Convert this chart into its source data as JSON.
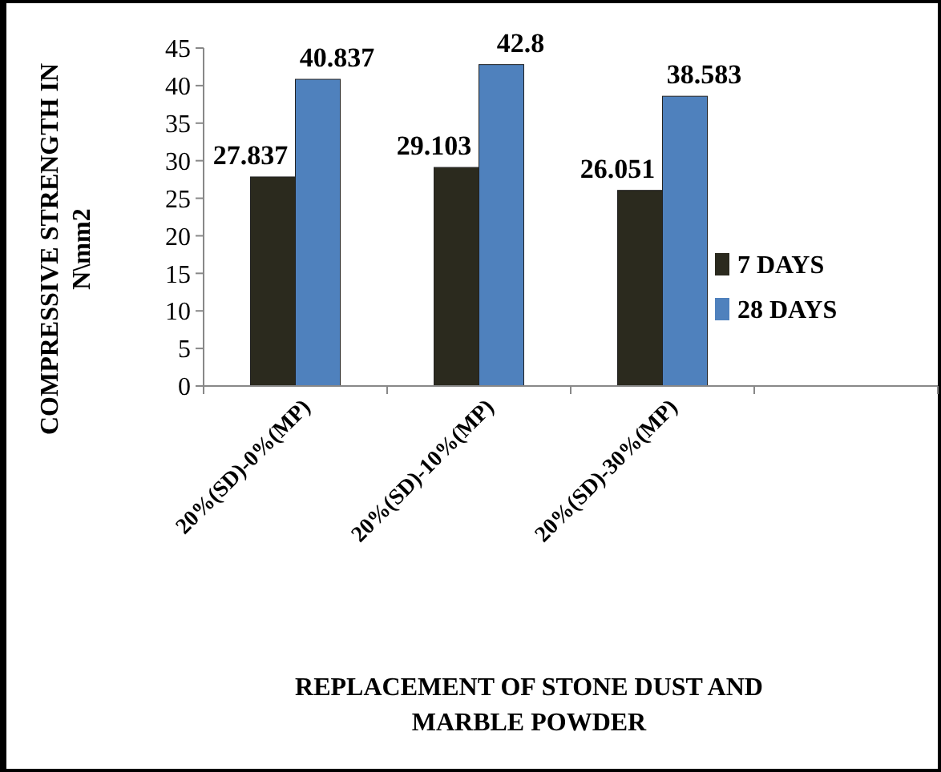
{
  "chart_data": {
    "type": "bar",
    "xlabel": "REPLACEMENT OF STONE DUST AND MARBLE POWDER",
    "ylabel": "COMPRESSIVE STRENGTH IN N\\mm2",
    "categories": [
      "20%(SD)-0%(MP)",
      "20%(SD)-10%(MP)",
      "20%(SD)-30%(MP)",
      null
    ],
    "series": [
      {
        "name": "7 DAYS",
        "color": "#2b2a1e",
        "values": [
          27.837,
          29.103,
          26.051,
          null
        ]
      },
      {
        "name": "28 DAYS",
        "color": "#4f81bd",
        "values": [
          40.837,
          42.8,
          38.583,
          null
        ]
      }
    ],
    "ylim": [
      0,
      45
    ],
    "yticks": [
      0,
      5,
      10,
      15,
      20,
      25,
      30,
      35,
      40,
      45
    ],
    "grid": false,
    "legend": "right",
    "data_labels": true
  }
}
